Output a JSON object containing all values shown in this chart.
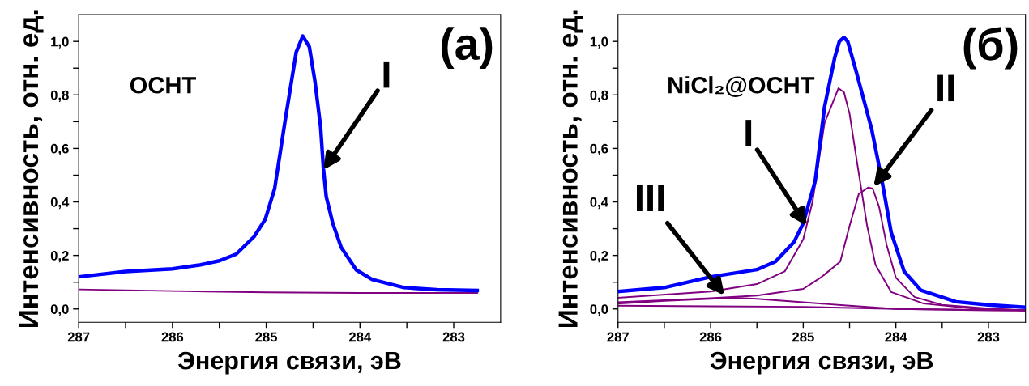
{
  "chart_data": [
    {
      "type": "line",
      "xlabel": "Энергия связи, эВ",
      "ylabel": "Интенсивность, отн. ед.",
      "grid": false,
      "marker": "none",
      "line_style": "solid",
      "xlim": [
        287,
        282.5
      ],
      "ylim": [
        -0.05,
        1.1
      ],
      "xticks": [
        287,
        {
          "value": 286.5,
          "label": null
        },
        286,
        {
          "value": 285.5,
          "label": null
        },
        285,
        {
          "value": 284.5,
          "label": null
        },
        284,
        {
          "value": 283.5,
          "label": null
        },
        283
      ],
      "yticks": [
        {
          "value": 0,
          "label": "0,0"
        },
        {
          "value": 0.1,
          "label": null
        },
        {
          "value": 0.2,
          "label": "0,2"
        },
        {
          "value": 0.3,
          "label": null
        },
        {
          "value": 0.4,
          "label": "0,4"
        },
        {
          "value": 0.5,
          "label": null
        },
        {
          "value": 0.6,
          "label": "0,6"
        },
        {
          "value": 0.7,
          "label": null
        },
        {
          "value": 0.8,
          "label": "0,8"
        },
        {
          "value": 0.9,
          "label": null
        },
        {
          "value": 1.0,
          "label": "1,0"
        }
      ],
      "annotations": [
        "(а)",
        "ОСНТ",
        {
          "text": "I",
          "x": 284.39,
          "y": 0.52
        }
      ],
      "series": [
        {
          "color": "#0000ff",
          "x": [
            287,
            286.5,
            286,
            285.7,
            285.5,
            285.32,
            285.13,
            285.01,
            284.91,
            284.8,
            284.68,
            284.61,
            284.54,
            284.48,
            284.42,
            284.39,
            284.36,
            284.29,
            284.2,
            284.04,
            283.87,
            283.53,
            283.18,
            282.75
          ],
          "values": [
            0.12,
            0.14,
            0.15,
            0.165,
            0.18,
            0.205,
            0.27,
            0.335,
            0.45,
            0.7,
            0.96,
            1.02,
            0.98,
            0.85,
            0.68,
            0.525,
            0.42,
            0.32,
            0.23,
            0.146,
            0.11,
            0.08,
            0.072,
            0.069
          ]
        },
        {
          "color": "#800080",
          "x": [
            287,
            286,
            285,
            284,
            283,
            282.75
          ],
          "values": [
            0.073,
            0.067,
            0.062,
            0.06,
            0.06,
            0.06
          ]
        }
      ]
    },
    {
      "type": "line",
      "xlabel": "Энергия связи, эВ",
      "ylabel": "Интенсивность, отн. ед.",
      "grid": false,
      "marker": "none",
      "line_style": "solid",
      "xlim": [
        287,
        282.6
      ],
      "ylim": [
        -0.05,
        1.1
      ],
      "xticks": [
        287,
        {
          "value": 286.5,
          "label": null
        },
        286,
        {
          "value": 285.5,
          "label": null
        },
        285,
        {
          "value": 284.5,
          "label": null
        },
        284,
        {
          "value": 283.5,
          "label": null
        },
        283
      ],
      "yticks": [
        {
          "value": 0,
          "label": "0,0"
        },
        {
          "value": 0.1,
          "label": null
        },
        {
          "value": 0.2,
          "label": "0,2"
        },
        {
          "value": 0.3,
          "label": null
        },
        {
          "value": 0.4,
          "label": "0,4"
        },
        {
          "value": 0.5,
          "label": null
        },
        {
          "value": 0.6,
          "label": "0,6"
        },
        {
          "value": 0.7,
          "label": null
        },
        {
          "value": 0.8,
          "label": "0,8"
        },
        {
          "value": 0.9,
          "label": null
        },
        {
          "value": 1.0,
          "label": "1,0"
        }
      ],
      "annotations": [
        "(б)",
        "NiCl₂@ОСНТ",
        {
          "text": "I",
          "x": 284.96,
          "y": 0.31
        },
        {
          "text": "II",
          "x": 284.24,
          "y": 0.457
        },
        {
          "text": "III",
          "x": 285.85,
          "y": 0.05
        }
      ],
      "series": [
        {
          "color": "#0000ff",
          "x": [
            287,
            286.5,
            286,
            285.5,
            285.3,
            285.1,
            285.0,
            284.87,
            284.77,
            284.66,
            284.61,
            284.56,
            284.52,
            284.43,
            284.26,
            284.15,
            284.05,
            283.91,
            283.73,
            283.35,
            283.0,
            282.6
          ],
          "values": [
            0.065,
            0.08,
            0.12,
            0.147,
            0.177,
            0.25,
            0.32,
            0.48,
            0.755,
            0.94,
            1.0,
            1.015,
            1.0,
            0.89,
            0.67,
            0.48,
            0.285,
            0.14,
            0.07,
            0.027,
            0.015,
            0.006
          ]
        },
        {
          "color": "#800080",
          "x": [
            287,
            286,
            285.5,
            285.2,
            285.0,
            284.9,
            284.77,
            284.66,
            284.62,
            284.56,
            284.5,
            284.42,
            284.31,
            284.22,
            284.05,
            283.7,
            283.18,
            282.6
          ],
          "values": [
            0.042,
            0.065,
            0.093,
            0.14,
            0.26,
            0.4,
            0.695,
            0.79,
            0.825,
            0.81,
            0.73,
            0.55,
            0.31,
            0.165,
            0.063,
            0.02,
            0.002,
            -0.004
          ]
        },
        {
          "color": "#800080",
          "x": [
            287,
            286,
            285.5,
            285,
            284.8,
            284.6,
            284.5,
            284.4,
            284.3,
            284.25,
            284.18,
            284.1,
            284.0,
            283.8,
            283.5,
            283.0,
            282.6
          ],
          "values": [
            0.025,
            0.04,
            0.05,
            0.075,
            0.12,
            0.177,
            0.31,
            0.43,
            0.454,
            0.45,
            0.38,
            0.24,
            0.117,
            0.045,
            0.015,
            0.002,
            -0.006
          ]
        },
        {
          "color": "#800080",
          "x": [
            287,
            286.5,
            286,
            285.75,
            285.5,
            285,
            284.5,
            284,
            283,
            282.6
          ],
          "values": [
            0.02,
            0.03,
            0.038,
            0.042,
            0.038,
            0.025,
            0.012,
            0.0,
            -0.005,
            -0.006
          ]
        },
        {
          "color": "#800080",
          "x": [
            287,
            286,
            285,
            284,
            283,
            282.6
          ],
          "values": [
            0.012,
            0.01,
            0.008,
            0.0,
            -0.004,
            -0.005
          ]
        }
      ]
    }
  ]
}
